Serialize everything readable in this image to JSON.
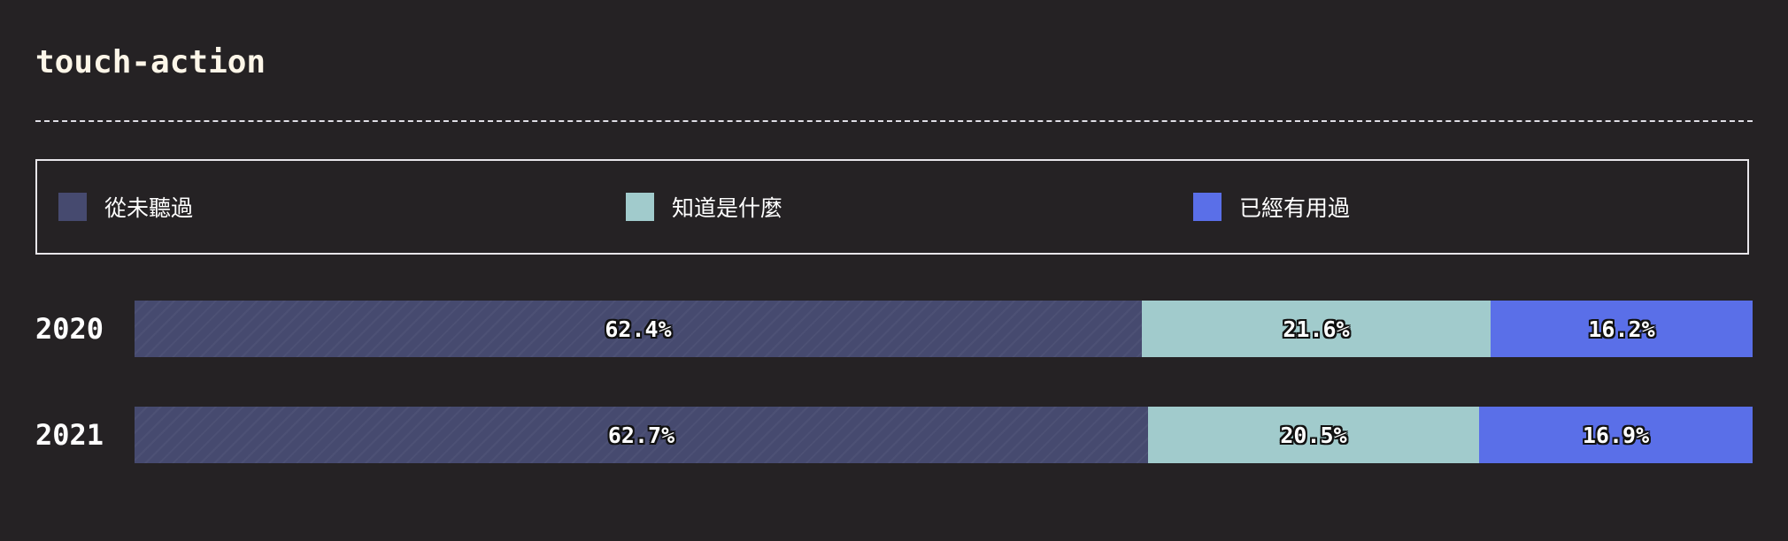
{
  "chart_data": {
    "type": "bar",
    "orientation": "horizontal",
    "stacked": true,
    "title": "touch-action",
    "categories": [
      "2020",
      "2021"
    ],
    "series": [
      {
        "name": "從未聽過",
        "color": "#464a6f",
        "values": [
          62.4,
          62.7
        ],
        "labels": [
          "62.4%",
          "62.7%"
        ]
      },
      {
        "name": "知道是什麼",
        "color": "#a1cbcc",
        "values": [
          21.6,
          20.5
        ],
        "labels": [
          "21.6%",
          "20.5%"
        ]
      },
      {
        "name": "已經有用過",
        "color": "#5a6fe8",
        "values": [
          16.2,
          16.9
        ],
        "labels": [
          "16.2%",
          "16.9%"
        ]
      }
    ],
    "xlim": [
      0,
      100
    ],
    "legend_position": "top",
    "grid": false
  }
}
